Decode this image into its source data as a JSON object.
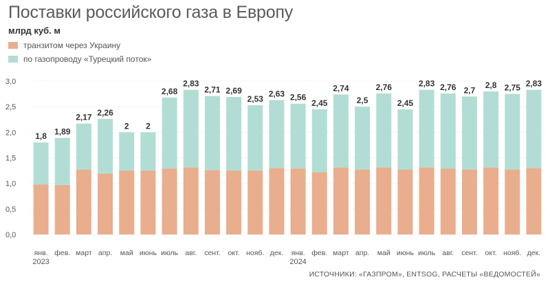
{
  "header": {
    "title": "Поставки российского газа в Европу",
    "unit": "млрд куб. м"
  },
  "legend": [
    {
      "label": "транзитом через Украину",
      "color": "#e9ae8d"
    },
    {
      "label": "по газопроводу «Турецкий поток»",
      "color": "#b2ddd5"
    }
  ],
  "source": "ИСТОЧНИКИ: «ГАЗПРОМ», ENTSOG, РАСЧЕТЫ «ВЕДОМОСТЕЙ»",
  "chart_data": {
    "type": "bar",
    "stacked": true,
    "categories": [
      "янв.",
      "фев.",
      "март",
      "апр.",
      "май",
      "июнь",
      "июль",
      "авг.",
      "сент.",
      "окт.",
      "нояб.",
      "дек.",
      "янв.",
      "фев.",
      "март",
      "апр.",
      "май",
      "июнь",
      "июль",
      "авг.",
      "сент.",
      "окт.",
      "нояб.",
      "дек."
    ],
    "year_labels": [
      {
        "index": 0,
        "label": "2023"
      },
      {
        "index": 12,
        "label": "2024"
      }
    ],
    "series": [
      {
        "name": "транзитом через Украину",
        "color": "#e9ae8d",
        "values": [
          0.98,
          0.97,
          1.27,
          1.19,
          1.25,
          1.25,
          1.29,
          1.31,
          1.26,
          1.25,
          1.25,
          1.3,
          1.29,
          1.22,
          1.31,
          1.27,
          1.31,
          1.27,
          1.31,
          1.29,
          1.27,
          1.31,
          1.27,
          1.3
        ]
      },
      {
        "name": "по газопроводу «Турецкий поток»",
        "color": "#b2ddd5",
        "values": [
          0.82,
          0.92,
          0.9,
          1.07,
          0.75,
          0.75,
          1.39,
          1.52,
          1.45,
          1.44,
          1.28,
          1.33,
          1.27,
          1.23,
          1.43,
          1.23,
          1.45,
          1.18,
          1.52,
          1.47,
          1.43,
          1.49,
          1.48,
          1.53
        ]
      }
    ],
    "totals": [
      "1,8",
      "1,89",
      "2,17",
      "2,26",
      "2",
      "2",
      "2,68",
      "2,83",
      "2,71",
      "2,69",
      "2,53",
      "2,63",
      "2,56",
      "2,45",
      "2,74",
      "2,5",
      "2,76",
      "2,45",
      "2,83",
      "2,76",
      "2,7",
      "2,8",
      "2,75",
      "2,83"
    ],
    "y_ticks": [
      "0,0",
      "0,5",
      "1,0",
      "1,5",
      "2,0",
      "2,5",
      "3,0"
    ],
    "ylim": [
      0,
      3.0
    ],
    "grid": true,
    "legend_position": "top-left"
  }
}
